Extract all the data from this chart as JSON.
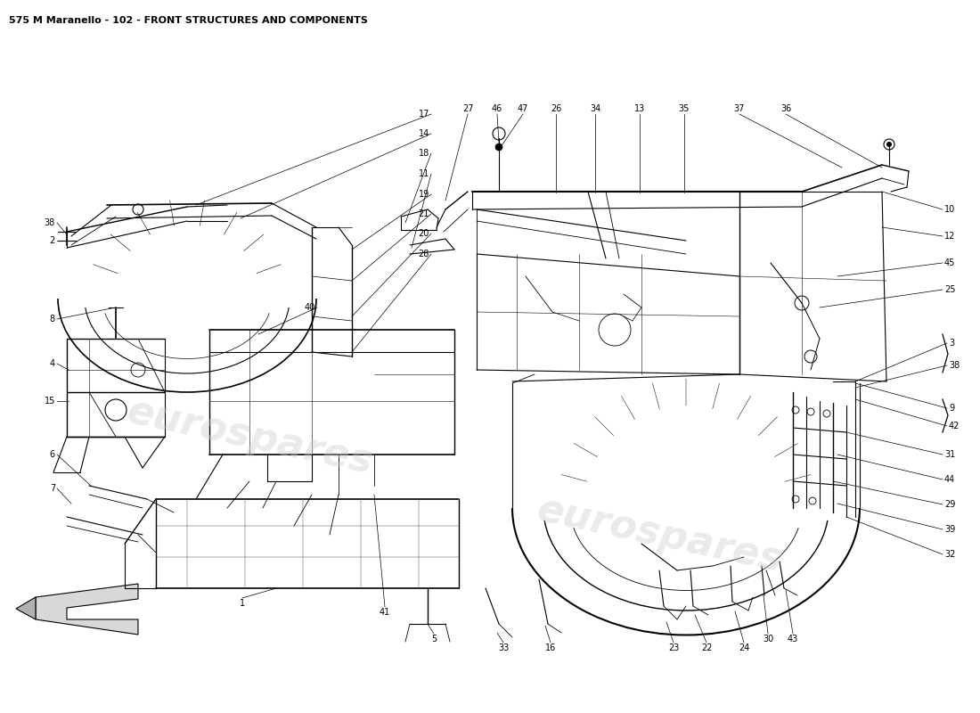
{
  "title": "575 M Maranello - 102 - FRONT STRUCTURES AND COMPONENTS",
  "title_fontsize": 8,
  "background_color": "#ffffff",
  "line_color": "#000000",
  "label_fontsize": 7,
  "fig_width": 11.0,
  "fig_height": 8.0,
  "watermark_color": "#cccccc",
  "watermark_alpha": 0.4,
  "watermark_text": "eurospares",
  "left_labels": [
    [
      "38",
      55,
      248
    ],
    [
      "2",
      55,
      270
    ],
    [
      "8",
      55,
      360
    ],
    [
      "4",
      55,
      410
    ],
    [
      "15",
      55,
      450
    ],
    [
      "6",
      55,
      510
    ],
    [
      "7",
      55,
      545
    ]
  ],
  "right_col_labels": [
    [
      "10",
      1055,
      235
    ],
    [
      "12",
      1055,
      265
    ],
    [
      "45",
      1055,
      295
    ],
    [
      "25",
      1055,
      325
    ],
    [
      "3",
      1060,
      385
    ],
    [
      "38",
      1060,
      410
    ],
    [
      "9",
      1060,
      460
    ],
    [
      "42",
      1060,
      480
    ],
    [
      "31",
      1055,
      510
    ],
    [
      "44",
      1055,
      538
    ],
    [
      "29",
      1055,
      566
    ],
    [
      "39",
      1055,
      594
    ],
    [
      "32",
      1055,
      622
    ]
  ],
  "top_left_labels": [
    [
      "17",
      483,
      127
    ],
    [
      "14",
      483,
      150
    ],
    [
      "18",
      483,
      173
    ],
    [
      "11",
      483,
      196
    ],
    [
      "19",
      483,
      219
    ],
    [
      "21",
      483,
      242
    ],
    [
      "20",
      483,
      265
    ],
    [
      "28",
      483,
      288
    ],
    [
      "40",
      355,
      345
    ]
  ],
  "top_center_labels": [
    [
      "27",
      525,
      127
    ],
    [
      "46",
      558,
      127
    ],
    [
      "47",
      587,
      127
    ],
    [
      "26",
      624,
      127
    ],
    [
      "34",
      668,
      127
    ],
    [
      "13",
      718,
      127
    ],
    [
      "35",
      768,
      127
    ],
    [
      "37",
      830,
      127
    ],
    [
      "36",
      882,
      127
    ]
  ],
  "bottom_labels": [
    [
      "5",
      487,
      710
    ],
    [
      "33",
      564,
      720
    ],
    [
      "16",
      620,
      720
    ],
    [
      "23",
      756,
      720
    ],
    [
      "22",
      793,
      720
    ],
    [
      "24",
      838,
      720
    ],
    [
      "30",
      865,
      710
    ],
    [
      "43",
      890,
      710
    ],
    [
      "1",
      270,
      670
    ],
    [
      "41",
      430,
      680
    ]
  ]
}
